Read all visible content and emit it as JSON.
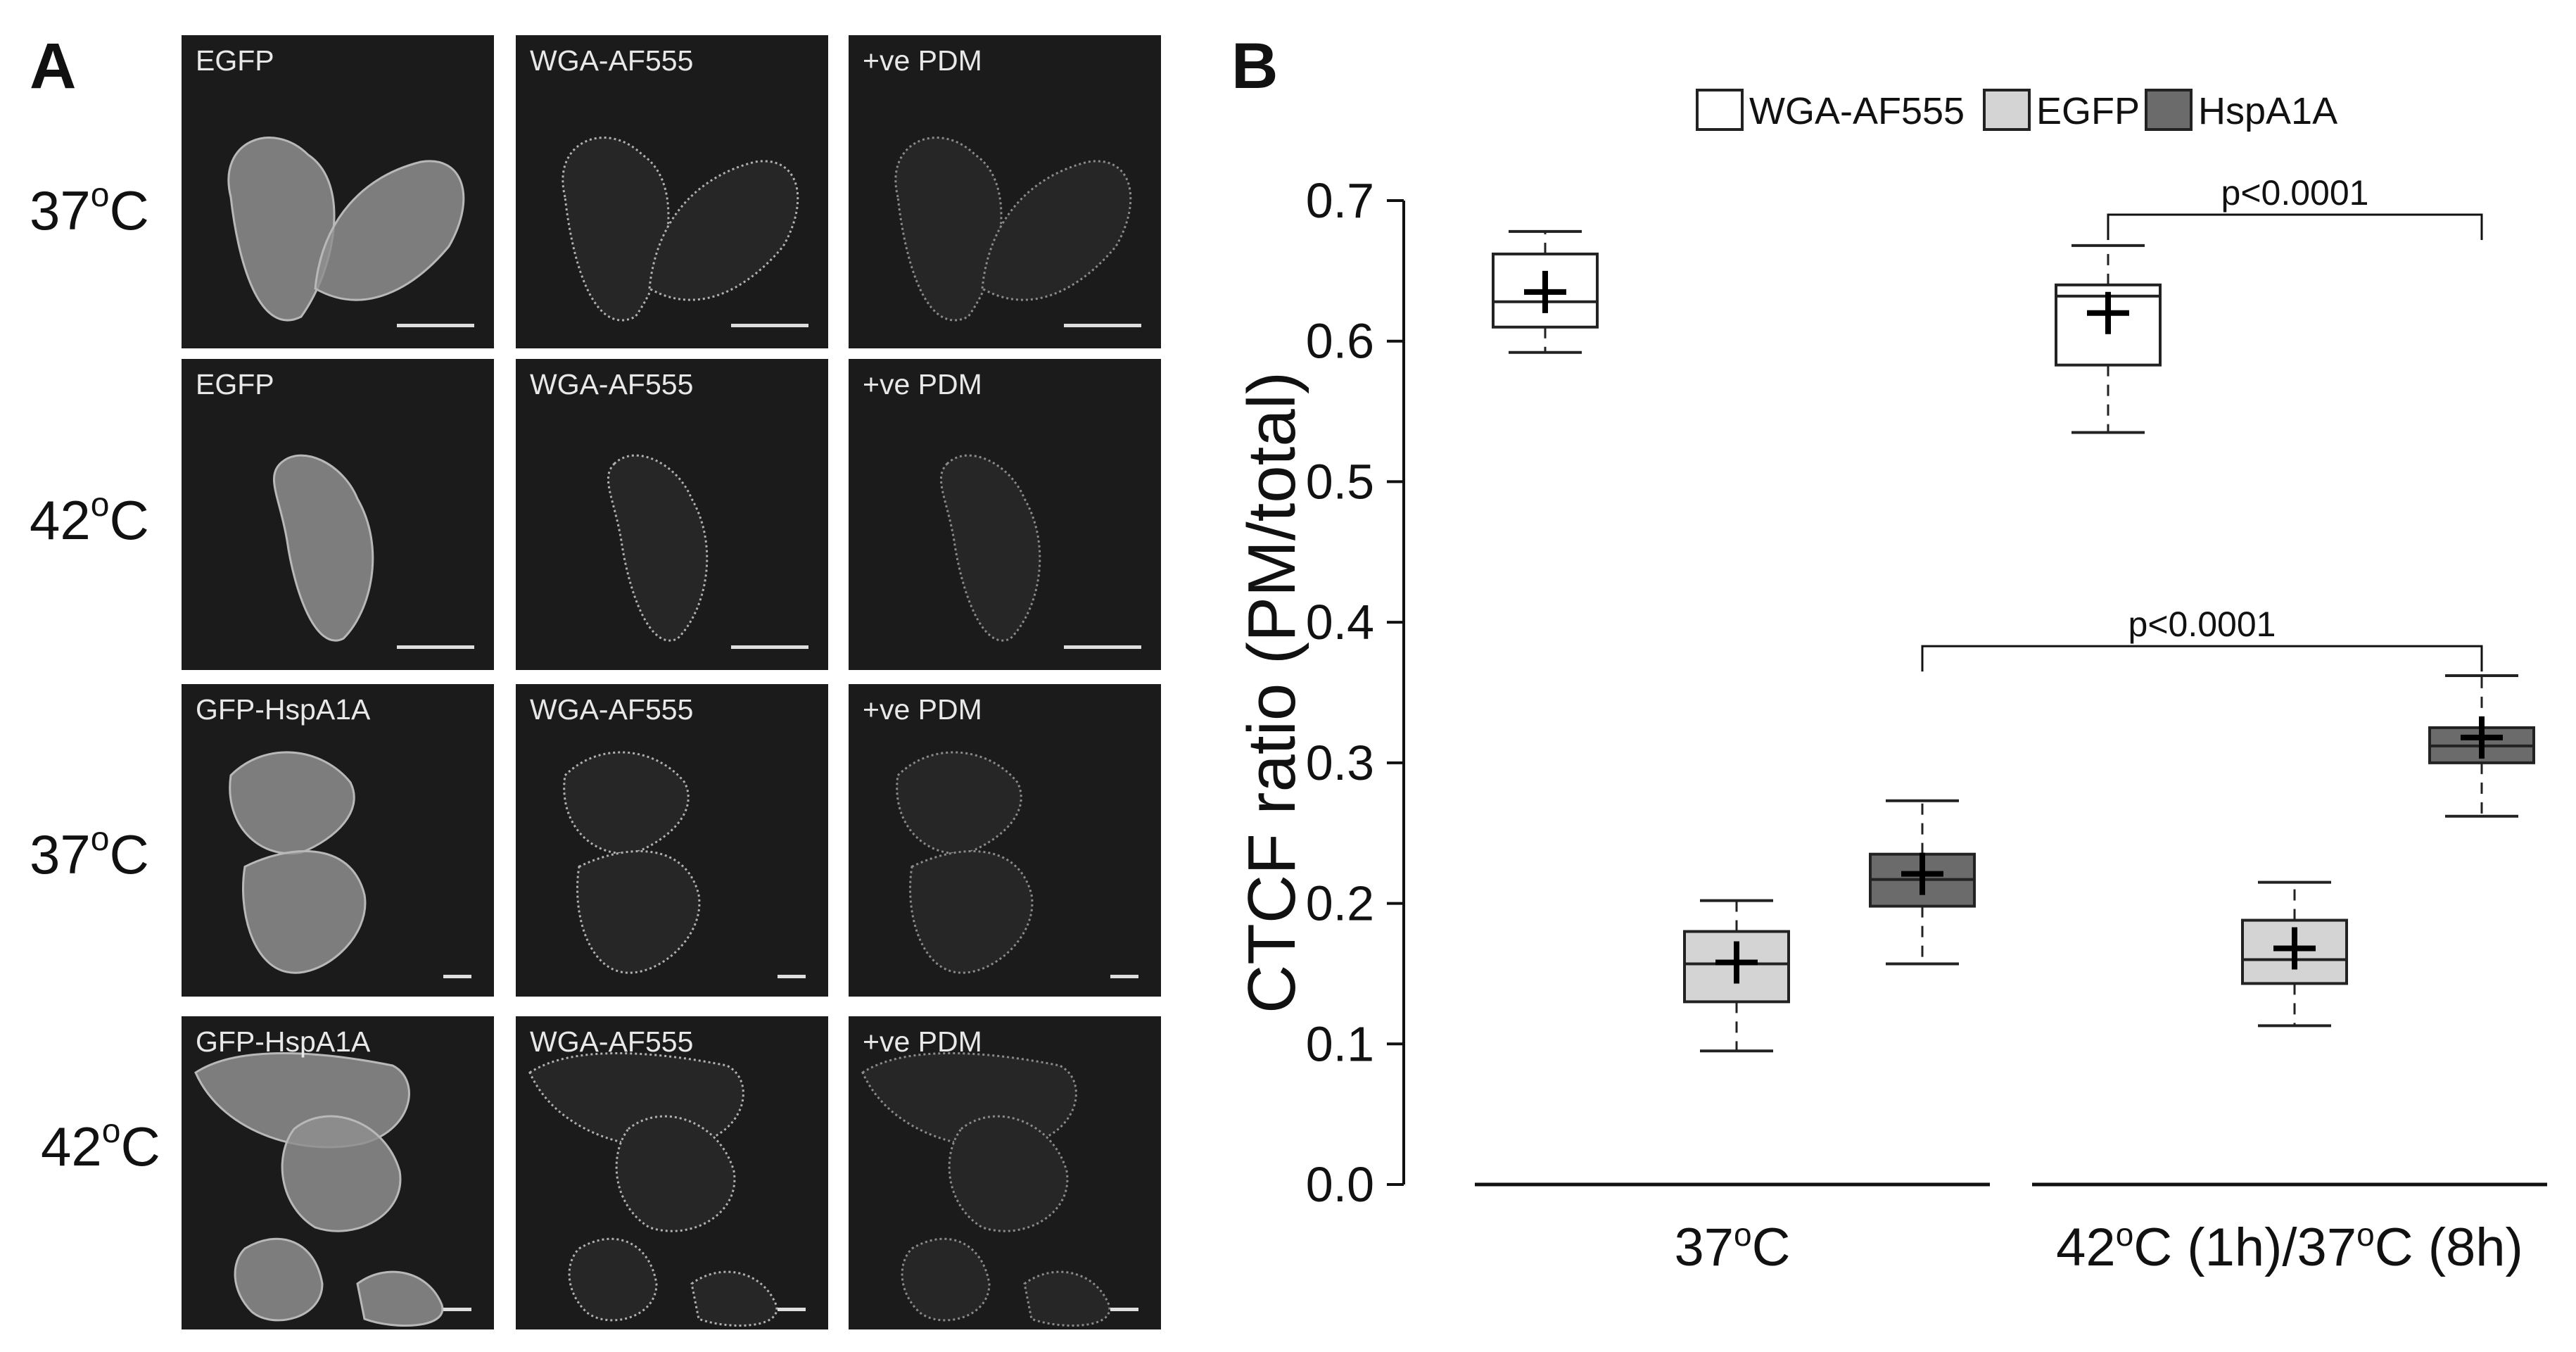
{
  "panel_a": {
    "letter": "A",
    "rows": [
      {
        "label": "37",
        "label_sup": "o",
        "label_unit": "C",
        "tiles": [
          "EGFP",
          "WGA-AF555",
          "+ve PDM"
        ]
      },
      {
        "label": "42",
        "label_sup": "o",
        "label_unit": "C",
        "tiles": [
          "EGFP",
          "WGA-AF555",
          "+ve PDM"
        ]
      },
      {
        "label": "37",
        "label_sup": "o",
        "label_unit": "C",
        "tiles": [
          "GFP-HspA1A",
          "WGA-AF555",
          "+ve PDM"
        ]
      },
      {
        "label": "42",
        "label_sup": "o",
        "label_unit": "C",
        "tiles": [
          "GFP-HspA1A",
          "WGA-AF555",
          "+ve PDM"
        ]
      }
    ]
  },
  "panel_b": {
    "letter": "B",
    "chart_data": {
      "type": "box",
      "ylabel": "CTCF ratio (PM/total)",
      "ylim": [
        0.0,
        0.7
      ],
      "yticks": [
        "0.0",
        "0.1",
        "0.2",
        "0.3",
        "0.4",
        "0.5",
        "0.6",
        "0.7"
      ],
      "legend": {
        "placement": "top",
        "entries": [
          {
            "name": "WGA-AF555",
            "color": "#ffffff"
          },
          {
            "name": "EGFP",
            "color": "#d4d4d4"
          },
          {
            "name": "HspA1A",
            "color": "#6b6b6b"
          }
        ]
      },
      "groups": [
        {
          "label": "37°C",
          "label_main": "37",
          "label_sup": "o",
          "label_rest": "C"
        },
        {
          "label": "42°C (1h)/37°C (8h)",
          "label_main": "42",
          "label_sup": "o",
          "label_rest": "C (1h)/37",
          "label_sup2": "o",
          "label_rest2": "C (8h)"
        }
      ],
      "boxes": [
        {
          "group": 0,
          "series": "WGA-AF555",
          "whisker_low": 0.592,
          "q1": 0.61,
          "median": 0.628,
          "q3": 0.662,
          "whisker_high": 0.678,
          "mean": 0.635
        },
        {
          "group": 0,
          "series": "EGFP",
          "whisker_low": 0.095,
          "q1": 0.13,
          "median": 0.157,
          "q3": 0.18,
          "whisker_high": 0.202,
          "mean": 0.158
        },
        {
          "group": 0,
          "series": "HspA1A",
          "whisker_low": 0.157,
          "q1": 0.198,
          "median": 0.217,
          "q3": 0.235,
          "whisker_high": 0.273,
          "mean": 0.221
        },
        {
          "group": 1,
          "series": "WGA-AF555",
          "whisker_low": 0.535,
          "q1": 0.583,
          "median": 0.632,
          "q3": 0.64,
          "whisker_high": 0.668,
          "mean": 0.62
        },
        {
          "group": 1,
          "series": "EGFP",
          "whisker_low": 0.113,
          "q1": 0.143,
          "median": 0.16,
          "q3": 0.188,
          "whisker_high": 0.215,
          "mean": 0.168
        },
        {
          "group": 1,
          "series": "HspA1A",
          "whisker_low": 0.262,
          "q1": 0.3,
          "median": 0.312,
          "q3": 0.325,
          "whisker_high": 0.362,
          "mean": 0.318
        }
      ],
      "annotations": [
        {
          "text": "p<0.0001",
          "from": "group1-WGA-AF555",
          "to": "group1-HspA1A",
          "y": 0.69
        },
        {
          "text": "p<0.0001",
          "from": "group0-HspA1A",
          "to": "group1-HspA1A",
          "y": 0.383
        }
      ]
    }
  }
}
